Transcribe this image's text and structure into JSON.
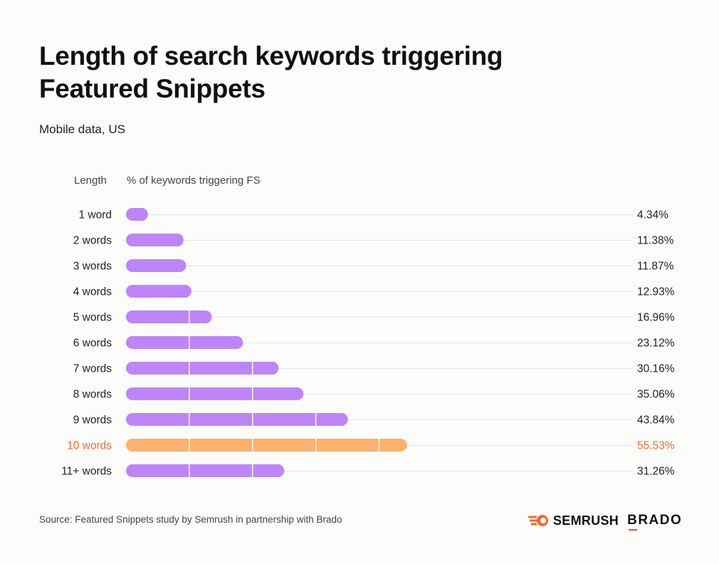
{
  "title": "Length of search keywords triggering Featured Snippets",
  "subtitle": "Mobile data, US",
  "colors": {
    "bar": "#be85f9",
    "highlight_bar": "#fdb16e",
    "highlight_text": "#ff642d",
    "grid": "#e2e2e2",
    "background": "#fcfdfa"
  },
  "chart_data": {
    "type": "bar",
    "orientation": "horizontal",
    "column_headers": [
      "Length",
      "% of keywords triggering FS"
    ],
    "categories": [
      "1 word",
      "2 words",
      "3 words",
      "4 words",
      "5 words",
      "6 words",
      "7 words",
      "8 words",
      "9 words",
      "10 words",
      "11+ words"
    ],
    "values": [
      4.34,
      11.38,
      11.87,
      12.93,
      16.96,
      23.12,
      30.16,
      35.06,
      43.84,
      55.53,
      31.26
    ],
    "value_labels": [
      "4.34%",
      "11.38%",
      "11.87%",
      "12.93%",
      "16.96%",
      "23.12%",
      "30.16%",
      "35.06%",
      "43.84%",
      "55.53%",
      "31.26%"
    ],
    "highlight": "10 words",
    "xlim": [
      0,
      100
    ],
    "grid_step": 12.5
  },
  "footer": {
    "source": "Source: Featured Snippets study by Semrush in partnership with Brado",
    "logos": [
      "SEMRUSH",
      "BRADO"
    ]
  }
}
